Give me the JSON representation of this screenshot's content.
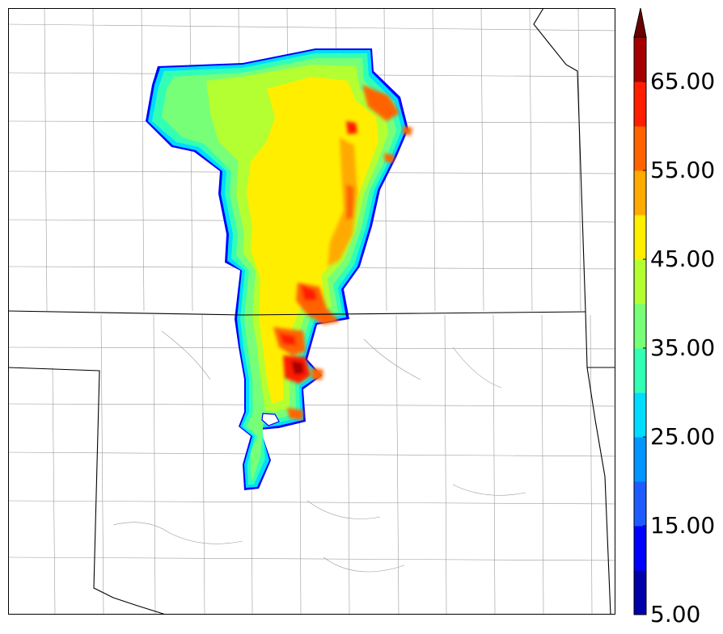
{
  "colorbar": {
    "tick_labels": [
      "5.00",
      "15.00",
      "25.00",
      "35.00",
      "45.00",
      "55.00",
      "65.00"
    ],
    "levels": [
      5,
      10,
      15,
      20,
      25,
      30,
      35,
      40,
      45,
      50,
      55,
      60,
      65,
      70
    ],
    "colors": [
      "#0000a8",
      "#0000ff",
      "#1e5cff",
      "#0096ff",
      "#00dcff",
      "#32ffb4",
      "#78ff78",
      "#b4ff32",
      "#ffee00",
      "#ffaa00",
      "#ff6400",
      "#ff1e00",
      "#a50000"
    ],
    "extend": "max",
    "extend_color": "#6a0000"
  },
  "map": {
    "boundary_color": "#000000",
    "county_color": "#9a9a9a",
    "contour_outline_color": "#0000ff"
  }
}
